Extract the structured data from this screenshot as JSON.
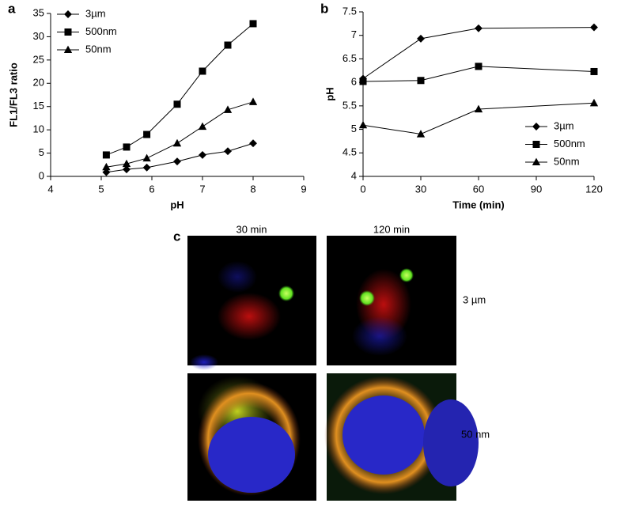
{
  "chart_data": [
    {
      "type": "line",
      "panel": "a",
      "xlabel": "pH",
      "ylabel": "FL1/FL3 ratio",
      "xlim": [
        4,
        9
      ],
      "xticks": [
        4,
        5,
        6,
        7,
        8,
        9
      ],
      "ylim": [
        0,
        35
      ],
      "yticks": [
        0,
        5,
        10,
        15,
        20,
        25,
        30,
        35
      ],
      "legend": "upper left",
      "x": [
        5.1,
        5.5,
        5.9,
        6.5,
        7,
        7.5,
        8
      ],
      "series": [
        {
          "name": "3µm",
          "color": "#000000",
          "marker": "diamond",
          "values": [
            0.9,
            1.5,
            1.9,
            3.2,
            4.6,
            5.4,
            7.1
          ]
        },
        {
          "name": "500nm",
          "color": "#000000",
          "marker": "square",
          "values": [
            4.6,
            6.3,
            9,
            15.5,
            22.6,
            28.2,
            32.8
          ]
        },
        {
          "name": "50nm",
          "color": "#000000",
          "marker": "triangle",
          "values": [
            2,
            2.7,
            3.9,
            7.1,
            10.7,
            14.3,
            16
          ]
        }
      ]
    },
    {
      "type": "line",
      "panel": "b",
      "xlabel": "Time (min)",
      "ylabel": "pH",
      "xlim": [
        0,
        120
      ],
      "xticks": [
        0,
        30,
        60,
        90,
        120
      ],
      "ylim": [
        4,
        7.5
      ],
      "yticks": [
        4,
        4.5,
        5,
        5.5,
        6,
        6.5,
        7,
        7.5
      ],
      "legend": "lower right",
      "x": [
        0,
        30,
        60,
        120
      ],
      "series": [
        {
          "name": "3µm",
          "color": "#000000",
          "marker": "diamond",
          "values": [
            6.08,
            6.93,
            7.15,
            7.17
          ]
        },
        {
          "name": "500nm",
          "color": "#000000",
          "marker": "square",
          "values": [
            6.02,
            6.04,
            6.34,
            6.23
          ]
        },
        {
          "name": "50nm",
          "color": "#000000",
          "marker": "triangle",
          "values": [
            5.09,
            4.9,
            5.43,
            5.56
          ]
        }
      ]
    }
  ],
  "panel_c": {
    "label": "c",
    "columns": [
      "30 min",
      "120 min"
    ],
    "rows": [
      "3 µm",
      "50 nm"
    ]
  }
}
